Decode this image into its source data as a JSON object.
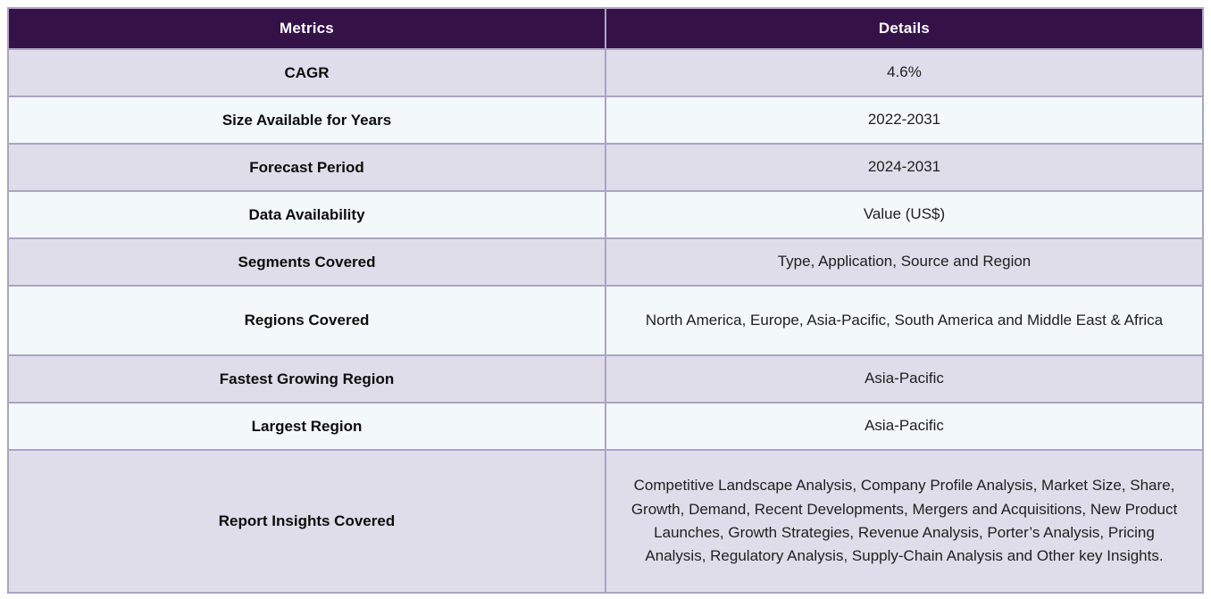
{
  "table": {
    "headers": {
      "metrics": "Metrics",
      "details": "Details"
    },
    "rows": [
      {
        "metric": "CAGR",
        "detail": "4.6%"
      },
      {
        "metric": "Size Available for Years",
        "detail": "2022-2031"
      },
      {
        "metric": "Forecast Period",
        "detail": "2024-2031"
      },
      {
        "metric": "Data Availability",
        "detail": "Value (US$)"
      },
      {
        "metric": "Segments Covered",
        "detail": "Type, Application, Source and Region"
      },
      {
        "metric": "Regions Covered",
        "detail": "North America, Europe, Asia-Pacific, South America and Middle East & Africa"
      },
      {
        "metric": "Fastest Growing Region",
        "detail": "Asia-Pacific"
      },
      {
        "metric": "Largest Region",
        "detail": "Asia-Pacific"
      },
      {
        "metric": "Report Insights Covered",
        "detail": "Competitive Landscape Analysis, Company Profile Analysis, Market Size, Share, Growth, Demand, Recent Developments, Mergers and Acquisitions, New Product Launches, Growth Strategies, Revenue Analysis, Porter’s Analysis, Pricing Analysis, Regulatory Analysis, Supply-Chain Analysis and Other key Insights."
      }
    ],
    "colors": {
      "header_bg": "#341247",
      "header_text": "#ffffff",
      "row_alt_bg": "#dfdde9",
      "row_bg": "#f3f8fb",
      "border": "#aba4c4",
      "metric_text": "#0d0d0d",
      "detail_text": "#1f1f1f"
    }
  }
}
